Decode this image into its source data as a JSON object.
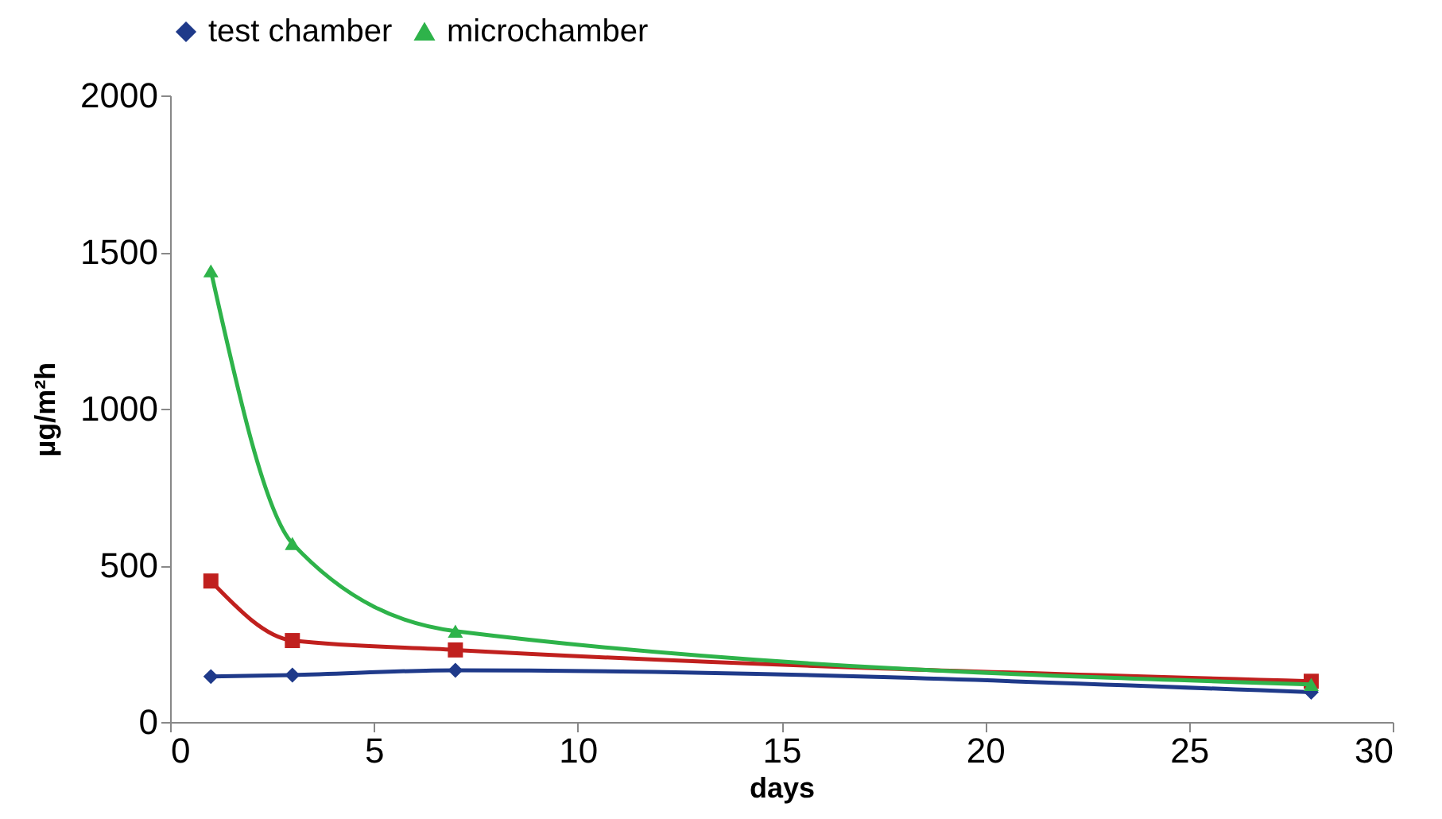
{
  "chart_data": {
    "type": "line",
    "xlabel": "days",
    "ylabel": "µg/m²h",
    "x": [
      1,
      3,
      7,
      28
    ],
    "series": [
      {
        "name": "test chamber",
        "color": "#1f3a8a",
        "marker": "diamond",
        "values": [
          145,
          150,
          165,
          95
        ]
      },
      {
        "color": "#c0201e",
        "marker": "square",
        "values": [
          450,
          260,
          230,
          130
        ]
      },
      {
        "name": "microchamber",
        "color": "#2eb34a",
        "marker": "triangle",
        "values": [
          1440,
          570,
          290,
          120
        ]
      }
    ],
    "xlim": [
      0,
      30
    ],
    "xticks": [
      0,
      5,
      10,
      15,
      20,
      25,
      30
    ],
    "ylim": [
      0,
      2000
    ],
    "yticks": [
      0,
      500,
      1000,
      1500,
      2000
    ],
    "grid": false,
    "legend": "top",
    "line_style": "solid"
  }
}
